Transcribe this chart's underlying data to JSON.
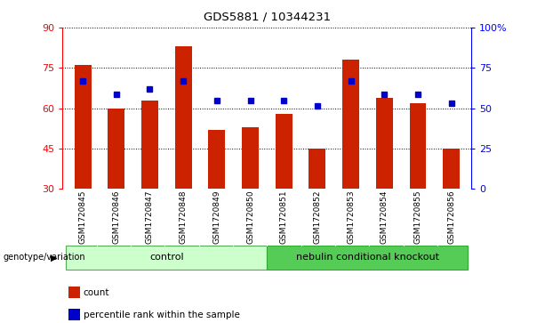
{
  "title": "GDS5881 / 10344231",
  "categories": [
    "GSM1720845",
    "GSM1720846",
    "GSM1720847",
    "GSM1720848",
    "GSM1720849",
    "GSM1720850",
    "GSM1720851",
    "GSM1720852",
    "GSM1720853",
    "GSM1720854",
    "GSM1720855",
    "GSM1720856"
  ],
  "bar_values": [
    76,
    60,
    63,
    83,
    52,
    53,
    58,
    45,
    78,
    64,
    62,
    45
  ],
  "dot_values": [
    70,
    65,
    67,
    70,
    63,
    63,
    63,
    61,
    70,
    65,
    65,
    62
  ],
  "left_ylim": [
    30,
    90
  ],
  "left_yticks": [
    30,
    45,
    60,
    75,
    90
  ],
  "right_ylim": [
    0,
    100
  ],
  "right_yticks": [
    0,
    25,
    50,
    75,
    100
  ],
  "right_yticklabels": [
    "0",
    "25",
    "50",
    "75",
    "100%"
  ],
  "bar_color": "#CC2200",
  "dot_color": "#0000CC",
  "control_label": "control",
  "knockout_label": "nebulin conditional knockout",
  "genotype_label": "genotype/variation",
  "legend_count": "count",
  "legend_percentile": "percentile rank within the sample",
  "control_color": "#CCFFCC",
  "knockout_color": "#55CC55",
  "tick_area_color": "#C8C8C8",
  "fig_width": 6.13,
  "fig_height": 3.63,
  "fig_dpi": 100
}
